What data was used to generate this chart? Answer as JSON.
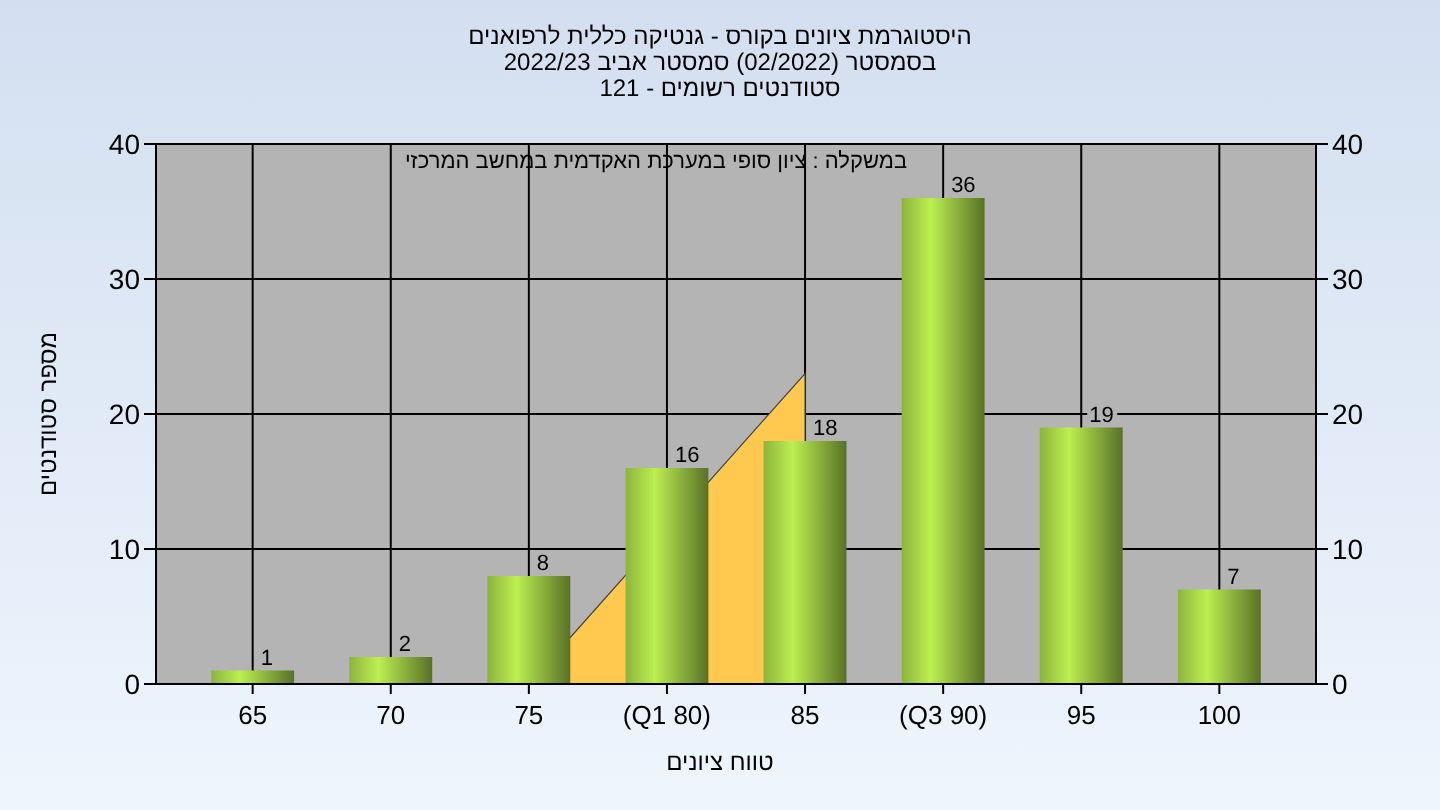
{
  "chart_data": {
    "type": "bar",
    "title": "היסטוגרמת ציונים בקורס - גנטיקה כללית לרפואנים",
    "subtitle": "בסמסטר  (02/2022)  סמסטר אביב 2022/23\nסטודנטים רשומים - 121",
    "xlabel": "טווח ציונים",
    "ylabel": "מספר סטודנטים",
    "annotations": [
      "במשקלה : ציון סופי במערכת האקדמית במחשב המרכזי"
    ],
    "categories": [
      "65",
      "70",
      "75",
      "(Q1 80)",
      "85",
      "(Q3 90)",
      "95",
      "100"
    ],
    "series": [
      {
        "type": "area",
        "color": "#ffc84f",
        "values": [
          null,
          null,
          0,
          null,
          23,
          null,
          null,
          null
        ]
      },
      {
        "color": "#8db43c",
        "values": [
          1,
          2,
          8,
          16,
          18,
          36,
          19,
          7
        ],
        "value_labels": [
          "1",
          "2",
          "8",
          "16",
          "18",
          "36",
          "19",
          "7"
        ]
      }
    ],
    "ylim": [
      0,
      40
    ],
    "yticks": [
      0,
      10,
      20,
      30,
      40
    ],
    "y2lim": [
      0,
      40
    ],
    "y2ticks": [
      0,
      10,
      20,
      30,
      40
    ],
    "grid": true
  }
}
